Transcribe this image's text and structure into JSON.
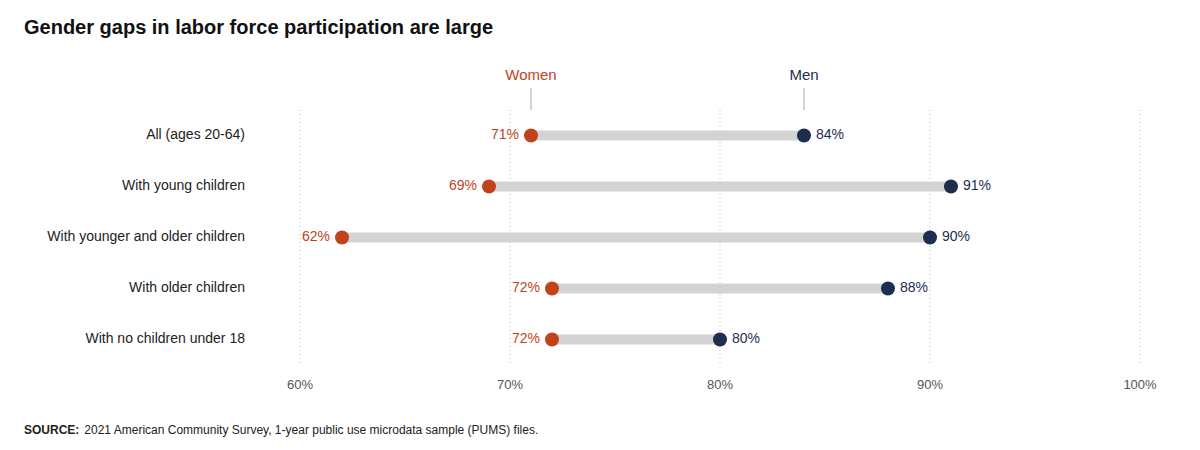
{
  "chart_data": {
    "type": "dumbbell",
    "orientation": "horizontal",
    "title": "Gender gaps in labor force participation are large",
    "categories": [
      "All (ages 20-64)",
      "With young children",
      "With younger and older children",
      "With older children",
      "With no children under 18"
    ],
    "series": [
      {
        "name": "Women",
        "color": "#C1431C",
        "values": [
          71,
          69,
          62,
          72,
          72
        ],
        "value_labels": [
          "71%",
          "69%",
          "62%",
          "72%",
          "72%"
        ]
      },
      {
        "name": "Men",
        "color": "#1D2E4F",
        "values": [
          84,
          91,
          90,
          88,
          80
        ],
        "value_labels": [
          "84%",
          "91%",
          "90%",
          "88%",
          "80%"
        ]
      }
    ],
    "color": "#D3D3D3",
    "xlim": [
      60,
      100
    ],
    "xticks": [
      {
        "value": 60,
        "label": "60%"
      },
      {
        "value": 70,
        "label": "70%"
      },
      {
        "value": 80,
        "label": "80%"
      },
      {
        "value": 90,
        "label": "90%"
      },
      {
        "value": 100,
        "label": "100%"
      }
    ],
    "grid": true,
    "data_labels": true,
    "source_label": "SOURCE:",
    "source": "2021 American Community Survey, 1-year public use microdata sample (PUMS) files."
  }
}
